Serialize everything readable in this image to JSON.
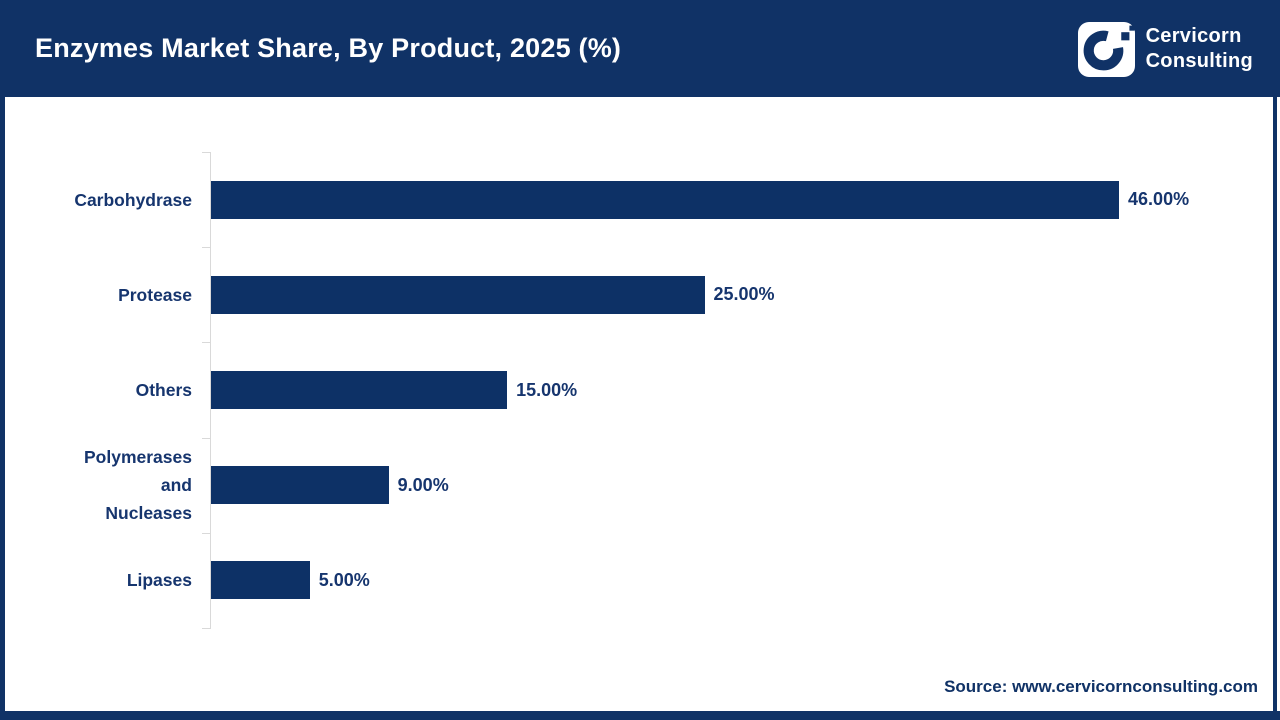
{
  "header": {
    "title": "Enzymes Market Share, By Product, 2025 (%)",
    "logo": {
      "line1": "Cervicorn",
      "line2": "Consulting"
    }
  },
  "chart_data": {
    "type": "bar",
    "orientation": "horizontal",
    "title": "Enzymes Market Share, By Product, 2025 (%)",
    "categories": [
      "Carbohydrase",
      "Protease",
      "Others",
      "Polymerases and Nucleases",
      "Lipases"
    ],
    "category_lines": [
      [
        "Carbohydrase"
      ],
      [
        "Protease"
      ],
      [
        "Others"
      ],
      [
        "Polymerases",
        "and",
        "Nucleases"
      ],
      [
        "Lipases"
      ]
    ],
    "values": [
      46.0,
      25.0,
      15.0,
      9.0,
      5.0
    ],
    "value_labels": [
      "46.00%",
      "25.00%",
      "15.00%",
      "9.00%",
      "5.00%"
    ],
    "xlabel": "",
    "ylabel": "",
    "xlim": [
      0,
      50
    ],
    "grid": false,
    "legend": false,
    "bar_color": "#0d3166",
    "label_color": "#16356e",
    "axis_color": "#d9d9d9"
  },
  "footer": {
    "source": "Source: www.cervicornconsulting.com"
  },
  "colors": {
    "header_navy": "#103266",
    "bar_navy": "#0d3166",
    "text_navy": "#16356e",
    "axis_gray": "#d9d9d9",
    "background": "#ffffff",
    "title_text": "#ffffff"
  }
}
